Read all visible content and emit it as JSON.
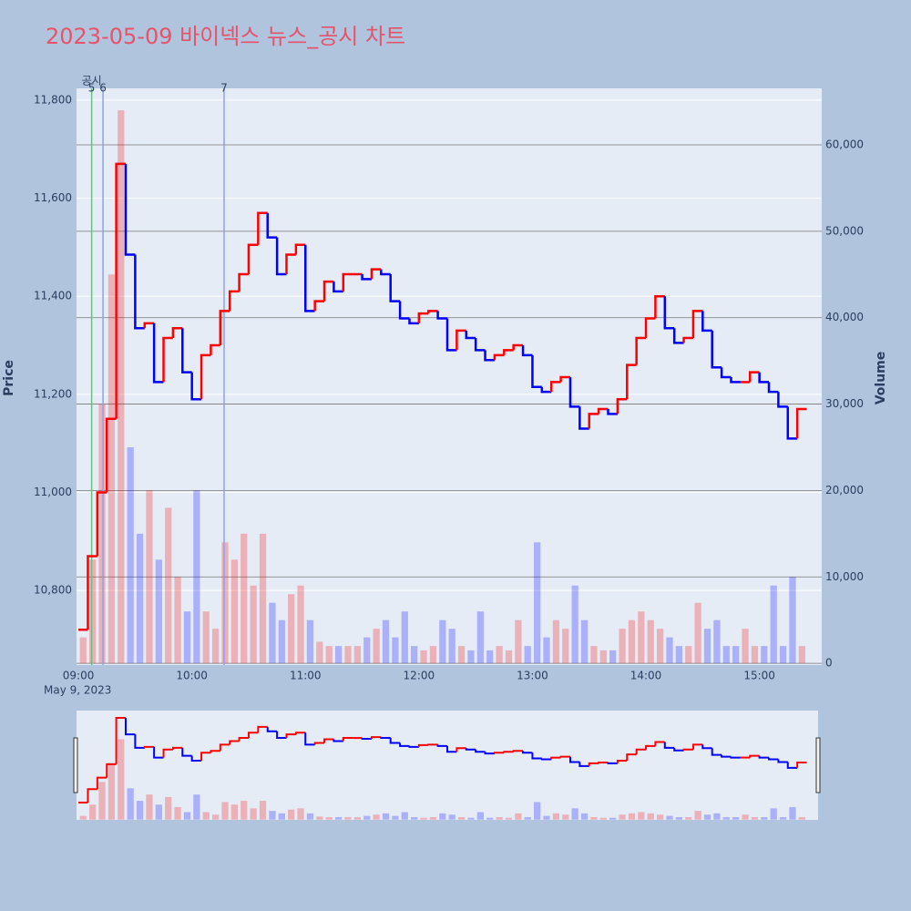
{
  "chart_data": {
    "type": "price-volume",
    "title": "2023-05-09 바이넥스 뉴스_공시 차트",
    "y_label": "Price",
    "y2_label": "Volume",
    "x_date_label": "May 9, 2023",
    "up_color": "#ff0000",
    "down_color": "#0000ff",
    "x": [
      "09:00",
      "09:05",
      "09:10",
      "09:15",
      "09:20",
      "09:25",
      "09:30",
      "09:35",
      "09:40",
      "09:45",
      "09:50",
      "09:55",
      "10:00",
      "10:05",
      "10:10",
      "10:15",
      "10:20",
      "10:25",
      "10:30",
      "10:35",
      "10:40",
      "10:45",
      "10:50",
      "10:55",
      "11:00",
      "11:05",
      "11:10",
      "11:15",
      "11:20",
      "11:25",
      "11:30",
      "11:35",
      "11:40",
      "11:45",
      "11:50",
      "11:55",
      "12:00",
      "12:05",
      "12:10",
      "12:15",
      "12:20",
      "12:25",
      "12:30",
      "12:35",
      "12:40",
      "12:45",
      "12:50",
      "12:55",
      "13:00",
      "13:05",
      "13:10",
      "13:15",
      "13:20",
      "13:25",
      "13:30",
      "13:35",
      "13:40",
      "13:45",
      "13:50",
      "13:55",
      "14:00",
      "14:05",
      "14:10",
      "14:15",
      "14:20",
      "14:25",
      "14:30",
      "14:35",
      "14:40",
      "14:45",
      "14:50",
      "14:55",
      "15:00",
      "15:05",
      "15:10",
      "15:15",
      "15:20"
    ],
    "series": [
      {
        "name": "Price",
        "values": [
          10720,
          10870,
          11000,
          11150,
          11670,
          11485,
          11335,
          11345,
          11225,
          11315,
          11335,
          11245,
          11190,
          11280,
          11300,
          11370,
          11410,
          11445,
          11505,
          11570,
          11520,
          11445,
          11485,
          11505,
          11370,
          11390,
          11430,
          11410,
          11445,
          11445,
          11435,
          11455,
          11445,
          11390,
          11355,
          11345,
          11365,
          11370,
          11355,
          11290,
          11330,
          11315,
          11290,
          11270,
          11280,
          11290,
          11300,
          11280,
          11215,
          11205,
          11225,
          11235,
          11175,
          11130,
          11160,
          11170,
          11160,
          11190,
          11260,
          11315,
          11355,
          11400,
          11335,
          11305,
          11315,
          11370,
          11330,
          11255,
          11235,
          11225,
          11225,
          11245,
          11225,
          11205,
          11175,
          11110,
          11170
        ]
      },
      {
        "name": "Volume",
        "axis": "y2",
        "values": [
          3000,
          12000,
          30000,
          45000,
          64000,
          25000,
          15000,
          20000,
          12000,
          18000,
          10000,
          6000,
          20000,
          6000,
          4000,
          14000,
          12000,
          15000,
          9000,
          15000,
          7000,
          5000,
          8000,
          9000,
          5000,
          2500,
          2000,
          2000,
          2000,
          2000,
          3000,
          4000,
          5000,
          3000,
          6000,
          2000,
          1500,
          2000,
          5000,
          4000,
          2000,
          1500,
          6000,
          1500,
          2000,
          1500,
          5000,
          2000,
          14000,
          3000,
          5000,
          4000,
          9000,
          5000,
          2000,
          1500,
          1500,
          4000,
          5000,
          6000,
          5000,
          4000,
          3000,
          2000,
          2000,
          7000,
          4000,
          5000,
          2000,
          2000,
          4000,
          2000,
          2000,
          9000,
          2000,
          10000,
          2000
        ]
      }
    ],
    "events": [
      {
        "time": "09:07",
        "label": "5",
        "color": "#6cbf84"
      },
      {
        "time": "09:13",
        "label": "6",
        "color": "#8f9ff0"
      },
      {
        "time": "10:17",
        "label": "7",
        "color": "#8f9ff0"
      }
    ],
    "event_group_label": "공시",
    "xlim": [
      "08:59",
      "15:31"
    ],
    "xticks": [
      "09:00",
      "10:00",
      "11:00",
      "12:00",
      "13:00",
      "14:00",
      "15:00"
    ],
    "ylim": [
      10648,
      11824
    ],
    "yticks": [
      {
        "value": 10800,
        "label": "10,800"
      },
      {
        "value": 11000,
        "label": "11,000"
      },
      {
        "value": 11200,
        "label": "11,200"
      },
      {
        "value": 11400,
        "label": "11,400"
      },
      {
        "value": 11600,
        "label": "11,600"
      },
      {
        "value": 11800,
        "label": "11,800"
      }
    ],
    "y2lim": [
      -200,
      66540
    ],
    "y2ticks": [
      0,
      {
        "value": 10000,
        "label": "10,000"
      },
      {
        "value": 20000,
        "label": "20,000"
      },
      {
        "value": 30000,
        "label": "30,000"
      },
      {
        "value": 40000,
        "label": "40,000"
      },
      {
        "value": 50000,
        "label": "50,000"
      },
      {
        "value": 60000,
        "label": "60,000"
      }
    ],
    "grid": true
  }
}
